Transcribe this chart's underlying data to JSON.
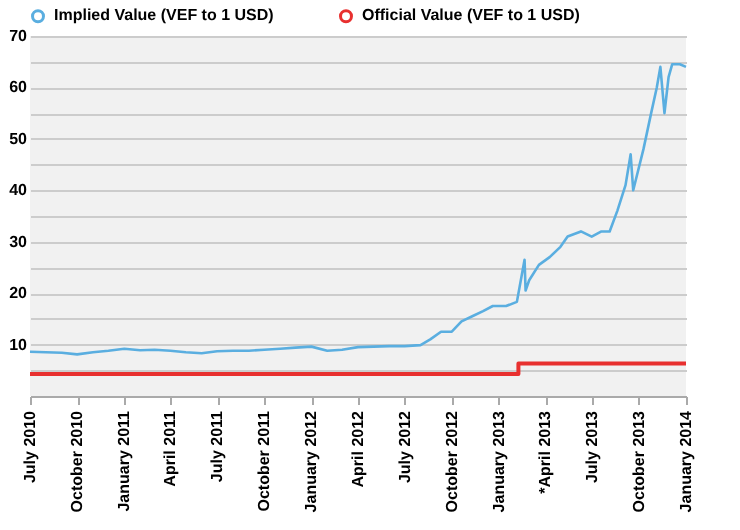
{
  "chart_data": {
    "type": "line",
    "legend": "top",
    "grid": "y",
    "xlim": [
      "2010-07-01",
      "2014-01-01"
    ],
    "xticks": [
      {
        "value": "2010-07-01",
        "label": "July 2010"
      },
      {
        "value": "2010-10-01",
        "label": "October 2010"
      },
      {
        "value": "2011-01-01",
        "label": "January 2011"
      },
      {
        "value": "2011-04-01",
        "label": "April 2011"
      },
      {
        "value": "2011-07-01",
        "label": "July 2011"
      },
      {
        "value": "2011-10-01",
        "label": "October 2011"
      },
      {
        "value": "2012-01-01",
        "label": "January 2012"
      },
      {
        "value": "2012-04-01",
        "label": "April 2012"
      },
      {
        "value": "2012-07-01",
        "label": "July 2012"
      },
      {
        "value": "2012-10-01",
        "label": "October 2012"
      },
      {
        "value": "2013-01-01",
        "label": "January 2013"
      },
      {
        "value": "2013-04-01",
        "label": "*April 2013"
      },
      {
        "value": "2013-07-01",
        "label": "July 2013"
      },
      {
        "value": "2013-10-01",
        "label": "October 2013"
      },
      {
        "value": "2014-01-01",
        "label": "January 2014"
      }
    ],
    "ylim": [
      0,
      70
    ],
    "yticks": [
      {
        "value": 0,
        "label": null
      },
      {
        "value": 5,
        "label": null
      },
      10,
      {
        "value": 15,
        "label": null
      },
      20,
      {
        "value": 25,
        "label": null
      },
      30,
      {
        "value": 35,
        "label": null
      },
      40,
      {
        "value": 45,
        "label": null
      },
      50,
      {
        "value": 55,
        "label": null
      },
      60,
      {
        "value": 65,
        "label": null
      },
      70
    ],
    "series": [
      {
        "name": "Implied Value (VEF to 1 USD)",
        "color": "#5aaee0",
        "x": [
          "2010-07-01",
          "2010-08-01",
          "2010-09-01",
          "2010-10-01",
          "2010-11-01",
          "2010-12-01",
          "2011-01-01",
          "2011-02-01",
          "2011-03-01",
          "2011-04-01",
          "2011-05-01",
          "2011-06-01",
          "2011-07-01",
          "2011-08-01",
          "2011-09-01",
          "2011-10-01",
          "2011-11-01",
          "2011-12-01",
          "2012-01-01",
          "2012-02-01",
          "2012-03-01",
          "2012-04-01",
          "2012-05-01",
          "2012-06-01",
          "2012-07-01",
          "2012-08-01",
          "2012-08-20",
          "2012-09-10",
          "2012-10-01",
          "2012-10-20",
          "2012-11-10",
          "2012-12-01",
          "2012-12-20",
          "2013-01-15",
          "2013-02-05",
          "2013-02-20",
          "2013-02-22",
          "2013-03-01",
          "2013-03-20",
          "2013-04-10",
          "2013-05-01",
          "2013-05-15",
          "2013-06-10",
          "2013-07-01",
          "2013-07-20",
          "2013-08-05",
          "2013-08-20",
          "2013-09-05",
          "2013-09-15",
          "2013-09-20",
          "2013-09-25",
          "2013-10-10",
          "2013-10-25",
          "2013-11-05",
          "2013-11-12",
          "2013-11-20",
          "2013-11-28",
          "2013-12-05",
          "2013-12-20",
          "2014-01-01"
        ],
        "values": [
          8.6,
          8.5,
          8.4,
          8.1,
          8.5,
          8.8,
          9.2,
          8.9,
          9.0,
          8.8,
          8.5,
          8.3,
          8.7,
          8.8,
          8.8,
          9.0,
          9.2,
          9.4,
          9.6,
          8.8,
          9.0,
          9.5,
          9.6,
          9.7,
          9.7,
          9.9,
          11.0,
          12.5,
          12.5,
          14.5,
          15.5,
          16.5,
          17.5,
          17.5,
          18.3,
          26.5,
          20.5,
          22.5,
          25.5,
          27,
          29,
          31,
          32,
          31,
          32,
          32,
          36,
          41,
          47,
          40,
          42,
          48,
          55,
          60,
          64,
          55,
          62,
          64.5,
          64.5,
          64
        ]
      },
      {
        "name": "Official Value (VEF to 1 USD)",
        "color": "#e8302f",
        "type": "step",
        "x": [
          "2010-07-01",
          "2013-02-08",
          "2014-01-01"
        ],
        "values": [
          4.3,
          6.3,
          6.3
        ]
      }
    ]
  }
}
